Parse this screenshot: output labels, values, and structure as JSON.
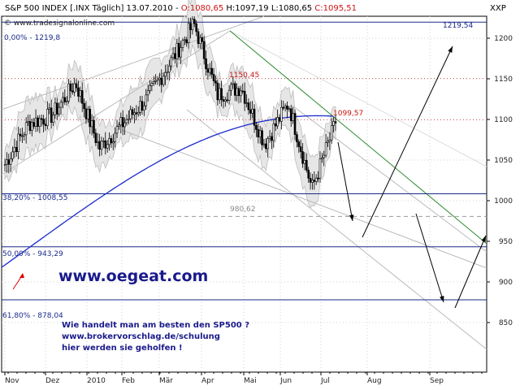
{
  "header": {
    "title": "S&P 500 INDEX [.INX Täglich] 13.07.2010 -",
    "open": "O:1080,65",
    "high": "H:1097,19",
    "low": "L:1080,65",
    "close": "C:1095,51",
    "source": "© www.tradesignalonline.com",
    "corner": "XXP"
  },
  "colors": {
    "frame": "#000000",
    "ma": "#1a2acc",
    "level": "#1a2a8a",
    "trend_green": "#2e8b2e",
    "red_text": "#cc1111",
    "band_fill": "#e6e6e6",
    "band_line": "#bdbdbd",
    "grid": "#d0d0d0"
  },
  "annotations": {
    "top_level": "1219,54",
    "fib_0": "0,00% - 1219,8",
    "fib_382": "38,20% - 1008,55",
    "fib_50": "50,00% - 943,29",
    "fib_618": "61,80% - 878,04",
    "mid_label": "980,62",
    "peak_label": "1150,45",
    "pivot_label": "1099,57",
    "website": "www.oegeat.com",
    "promo_lines": [
      "Wie handelt man am besten den SP500 ?",
      "www.brokervorschlag.de/schulung",
      "hier werden sie geholfen !"
    ]
  },
  "chart_data": {
    "type": "candlestick",
    "ylim": [
      820,
      1240
    ],
    "y_ticks": [
      "1200",
      "1150",
      "1100",
      "1050",
      "1000",
      "950",
      "900",
      "850"
    ],
    "x_ticks": [
      "Nov",
      "Dez",
      "2010",
      "Feb",
      "Mär",
      "Apr",
      "Mai",
      "Jun",
      "Jul",
      "Aug",
      "Sep"
    ],
    "price_anchors": [
      {
        "x": "early Nov",
        "close": 1045
      },
      {
        "x": "late Nov",
        "close": 1095
      },
      {
        "x": "mid Dez",
        "close": 1105
      },
      {
        "x": "mid Jan",
        "close": 1145
      },
      {
        "x": "early Feb",
        "close": 1065
      },
      {
        "x": "mid Feb",
        "close": 1095
      },
      {
        "x": "early Mär",
        "close": 1125
      },
      {
        "x": "late Mär",
        "close": 1170
      },
      {
        "x": "late Apr",
        "close": 1218
      },
      {
        "x": "early Mai",
        "close": 1130
      },
      {
        "x": "mid Mai",
        "close": 1140
      },
      {
        "x": "late Mai",
        "close": 1070
      },
      {
        "x": "mid Jun",
        "close": 1120
      },
      {
        "x": "early Jul",
        "close": 1015
      },
      {
        "x": "13.07.2010",
        "close": 1095.51
      }
    ],
    "moving_average_start": 918,
    "moving_average_end": 1103,
    "horizontal_levels": [
      1219.8,
      1008.55,
      943.29,
      878.04
    ],
    "dashed_level": 980.62,
    "dotted_levels": [
      1150.45,
      1099.57
    ]
  }
}
